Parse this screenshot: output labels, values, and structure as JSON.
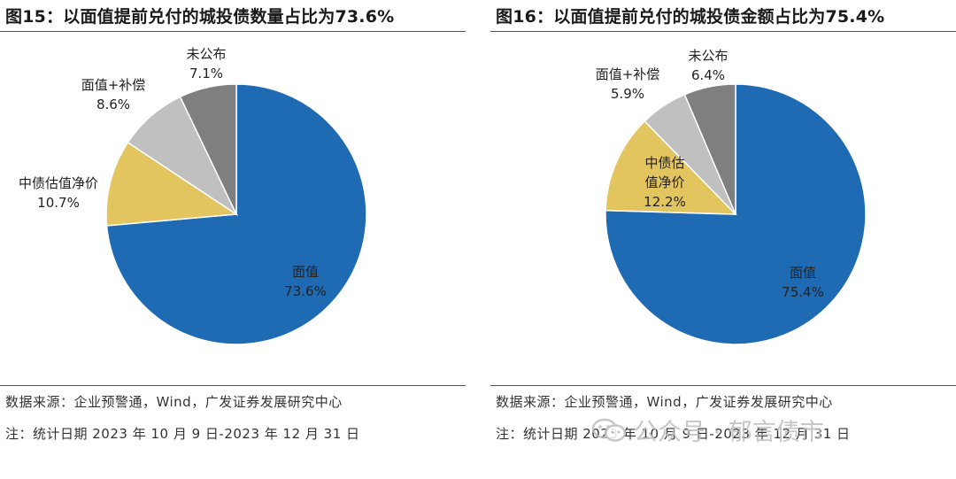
{
  "chart_data": [
    {
      "type": "pie",
      "title": "图15：以面值提前兑付的城投债数量占比为73.6%",
      "slices": [
        {
          "label": "面值",
          "value": 73.6,
          "display": "73.6%",
          "color": "#1f6bb3"
        },
        {
          "label": "中债估值净价",
          "value": 10.7,
          "display": "10.7%",
          "color": "#e3c55f"
        },
        {
          "label": "面值+补偿",
          "value": 8.6,
          "display": "8.6%",
          "color": "#c0c0c0"
        },
        {
          "label": "未公布",
          "value": 7.1,
          "display": "7.1%",
          "color": "#7f7f7f"
        }
      ],
      "source": "数据来源：企业预警通，Wind，广发证券发展研究中心",
      "note": "注：统计日期 2023 年 10 月 9 日-2023 年 12 月 31 日"
    },
    {
      "type": "pie",
      "title": "图16：以面值提前兑付的城投债金额占比为75.4%",
      "slices": [
        {
          "label": "面值",
          "value": 75.4,
          "display": "75.4%",
          "color": "#1f6bb3"
        },
        {
          "label": "中债估值净价",
          "value": 12.2,
          "display": "12.2%",
          "color": "#e3c55f"
        },
        {
          "label": "面值+补偿",
          "value": 5.9,
          "display": "5.9%",
          "color": "#c0c0c0"
        },
        {
          "label": "未公布",
          "value": 6.4,
          "display": "6.4%",
          "color": "#7f7f7f"
        }
      ],
      "source": "数据来源：企业预警通，Wind，广发证券发展研究中心",
      "note": "注：统计日期 2023 年 10 月 9 日-2023 年 12 月 31 日"
    }
  ],
  "watermark": {
    "text": "公众号 · 郁言债市",
    "icon": "wechat-icon"
  }
}
